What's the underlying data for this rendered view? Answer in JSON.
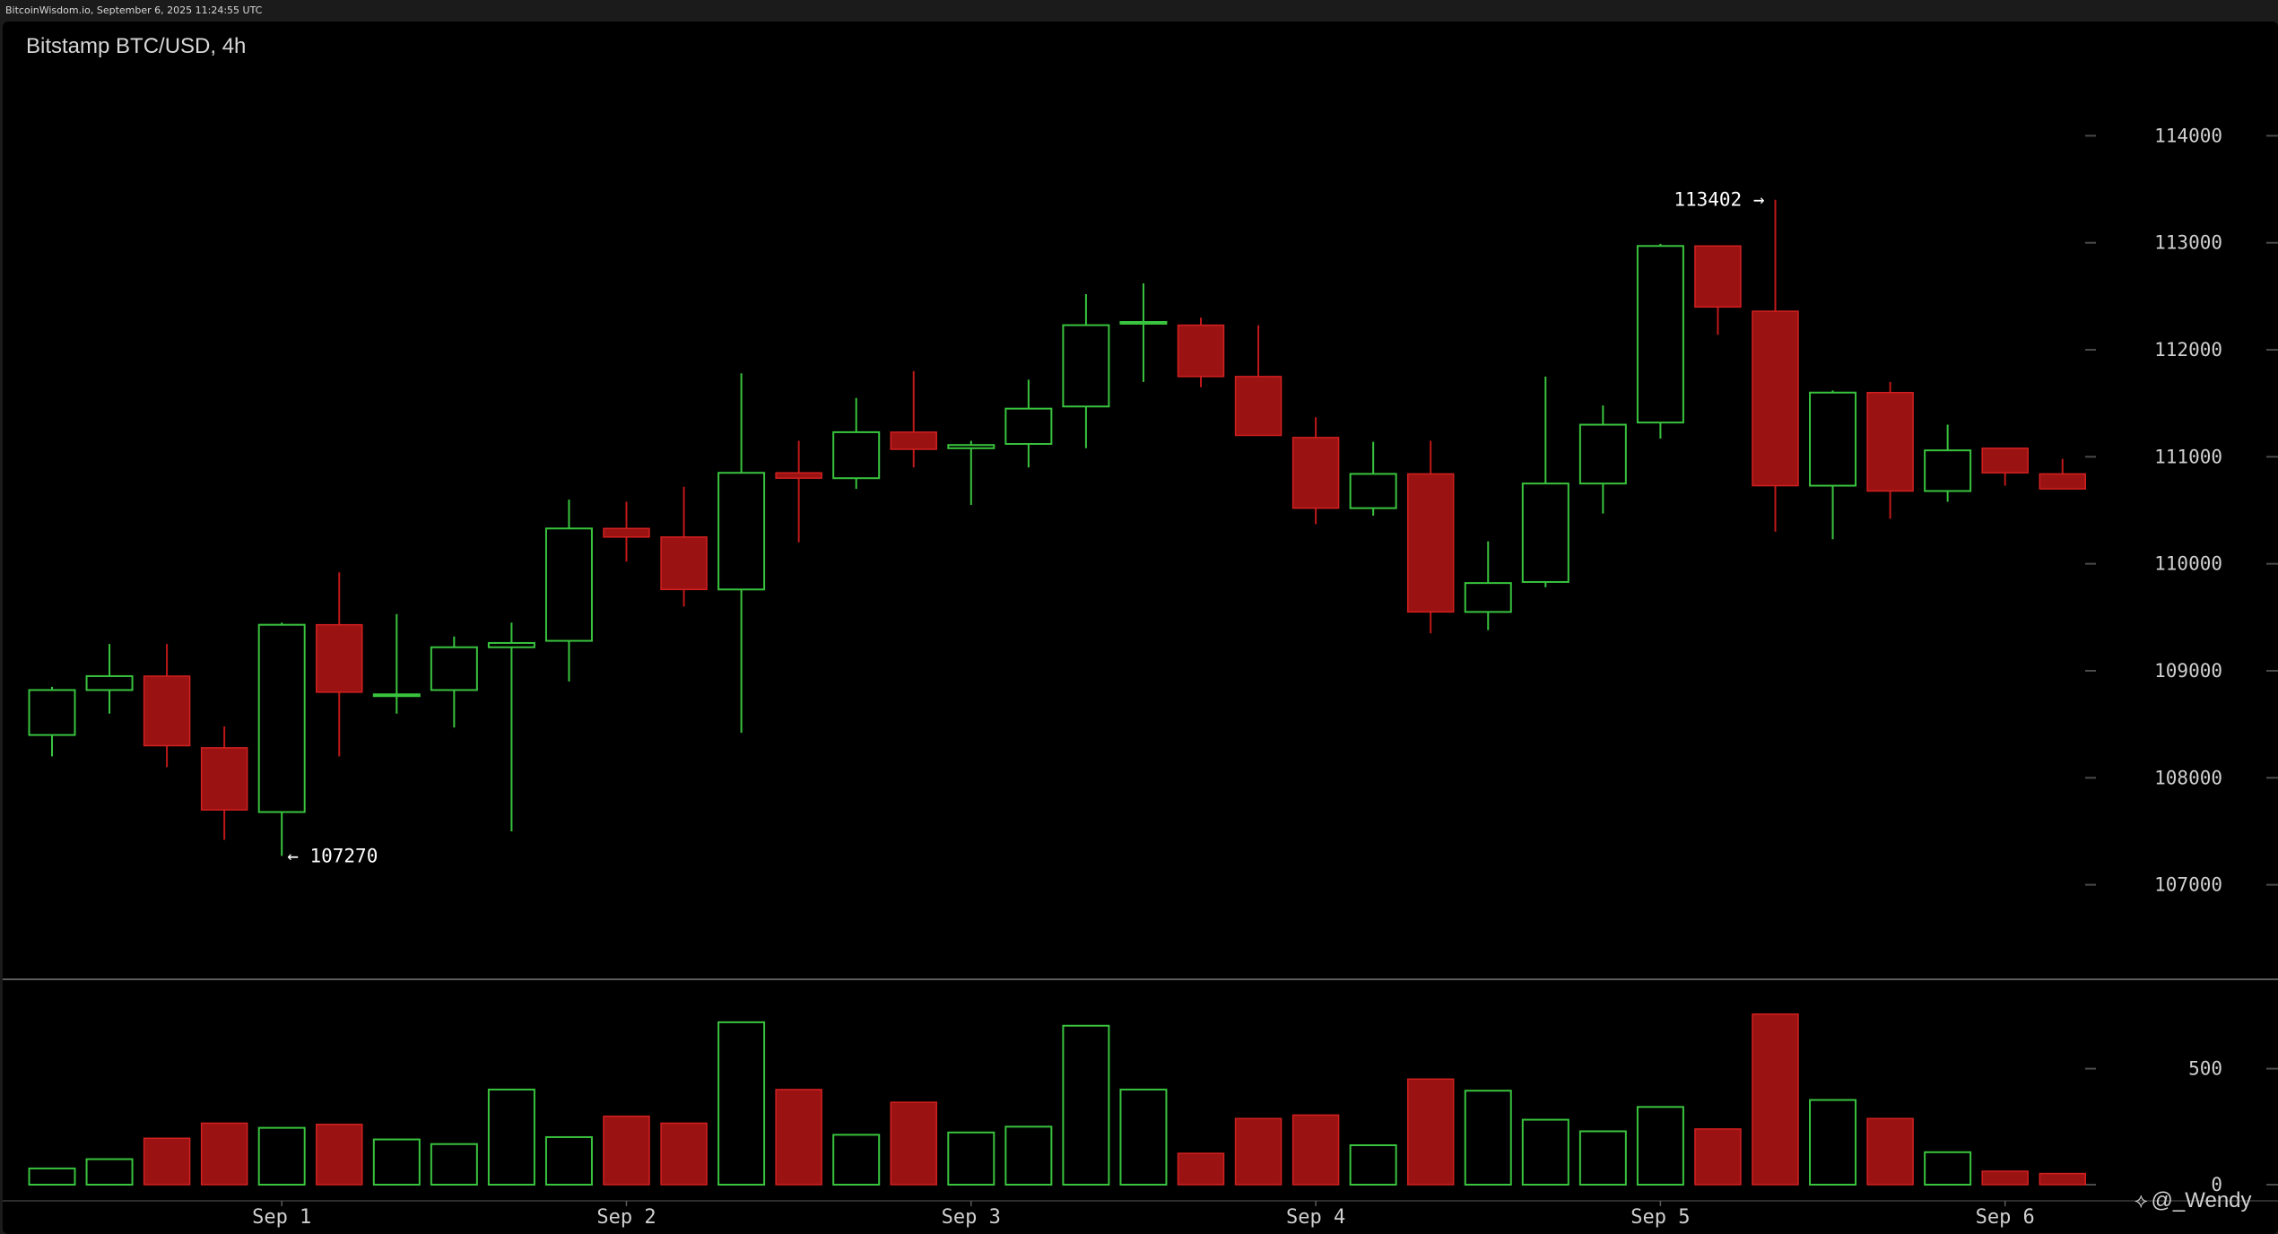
{
  "header": {
    "source_line": "BitcoinWisdom.io, September 6, 2025 11:24:55 UTC"
  },
  "watermark": {
    "icon": "diamond-logo-icon",
    "text": "@_Wendy"
  },
  "colors": {
    "up": "#39c33e",
    "down": "#9b1212",
    "down_border": "#d22020",
    "wick_up": "#39c33e",
    "wick_down": "#c01818",
    "grid_tick": "#4a4a4a",
    "separator": "#7a7a7a"
  },
  "chart_data": {
    "type": "candlestick",
    "title": "Bitstamp BTC/USD, 4h",
    "x_labels": [
      "Sep 1",
      "Sep 2",
      "Sep 3",
      "Sep 4",
      "Sep 5",
      "Sep 6"
    ],
    "price_axis": {
      "ticks": [
        107000,
        108000,
        109000,
        110000,
        111000,
        112000,
        113000,
        114000
      ],
      "ylim": [
        106100,
        114900
      ]
    },
    "volume_axis": {
      "ticks": [
        0,
        500
      ],
      "ylim": [
        0,
        800
      ]
    },
    "annotations": [
      {
        "text": "← 107270",
        "value": 107270,
        "candle": 4,
        "side": "right"
      },
      {
        "text": "113402 →",
        "value": 113402,
        "candle": 30,
        "side": "left"
      }
    ],
    "candles": [
      {
        "o": 108400,
        "h": 108850,
        "l": 108200,
        "c": 108820,
        "v": 70
      },
      {
        "o": 108820,
        "h": 109250,
        "l": 108600,
        "c": 108950,
        "v": 110
      },
      {
        "o": 108950,
        "h": 109250,
        "l": 108100,
        "c": 108300,
        "v": 200
      },
      {
        "o": 108280,
        "h": 108480,
        "l": 107420,
        "c": 107700,
        "v": 265
      },
      {
        "o": 107680,
        "h": 109450,
        "l": 107270,
        "c": 109430,
        "v": 245
      },
      {
        "o": 109430,
        "h": 109920,
        "l": 108200,
        "c": 108800,
        "v": 260
      },
      {
        "o": 108770,
        "h": 109530,
        "l": 108600,
        "c": 108780,
        "v": 195
      },
      {
        "o": 108820,
        "h": 109320,
        "l": 108470,
        "c": 109220,
        "v": 175
      },
      {
        "o": 109220,
        "h": 109450,
        "l": 107500,
        "c": 109260,
        "v": 410
      },
      {
        "o": 109280,
        "h": 110600,
        "l": 108900,
        "c": 110330,
        "v": 205
      },
      {
        "o": 110330,
        "h": 110580,
        "l": 110020,
        "c": 110250,
        "v": 295
      },
      {
        "o": 110250,
        "h": 110720,
        "l": 109600,
        "c": 109760,
        "v": 265
      },
      {
        "o": 109760,
        "h": 111780,
        "l": 108420,
        "c": 110850,
        "v": 700
      },
      {
        "o": 110850,
        "h": 111150,
        "l": 110200,
        "c": 110800,
        "v": 410
      },
      {
        "o": 110800,
        "h": 111550,
        "l": 110700,
        "c": 111230,
        "v": 215
      },
      {
        "o": 111230,
        "h": 111800,
        "l": 110900,
        "c": 111070,
        "v": 355
      },
      {
        "o": 111080,
        "h": 111150,
        "l": 110550,
        "c": 111110,
        "v": 225
      },
      {
        "o": 111120,
        "h": 111720,
        "l": 110900,
        "c": 111450,
        "v": 250
      },
      {
        "o": 111470,
        "h": 112520,
        "l": 111080,
        "c": 112230,
        "v": 685
      },
      {
        "o": 112250,
        "h": 112620,
        "l": 111700,
        "c": 112260,
        "v": 410
      },
      {
        "o": 112230,
        "h": 112300,
        "l": 111650,
        "c": 111750,
        "v": 135
      },
      {
        "o": 111750,
        "h": 112230,
        "l": 111200,
        "c": 111200,
        "v": 285
      },
      {
        "o": 111180,
        "h": 111370,
        "l": 110370,
        "c": 110520,
        "v": 300
      },
      {
        "o": 110520,
        "h": 111140,
        "l": 110450,
        "c": 110840,
        "v": 170
      },
      {
        "o": 110840,
        "h": 111150,
        "l": 109350,
        "c": 109550,
        "v": 455
      },
      {
        "o": 109550,
        "h": 110210,
        "l": 109380,
        "c": 109820,
        "v": 405
      },
      {
        "o": 109830,
        "h": 111750,
        "l": 109780,
        "c": 110750,
        "v": 280
      },
      {
        "o": 110750,
        "h": 111480,
        "l": 110470,
        "c": 111300,
        "v": 230
      },
      {
        "o": 111320,
        "h": 112990,
        "l": 111170,
        "c": 112970,
        "v": 335
      },
      {
        "o": 112970,
        "h": 112970,
        "l": 112140,
        "c": 112400,
        "v": 240
      },
      {
        "o": 112360,
        "h": 113402,
        "l": 110300,
        "c": 110730,
        "v": 735
      },
      {
        "o": 110730,
        "h": 111620,
        "l": 110230,
        "c": 111600,
        "v": 365
      },
      {
        "o": 111600,
        "h": 111700,
        "l": 110420,
        "c": 110680,
        "v": 285
      },
      {
        "o": 110680,
        "h": 111300,
        "l": 110580,
        "c": 111060,
        "v": 140
      },
      {
        "o": 111080,
        "h": 111080,
        "l": 110730,
        "c": 110850,
        "v": 58
      },
      {
        "o": 110840,
        "h": 110980,
        "l": 110700,
        "c": 110700,
        "v": 48
      }
    ]
  }
}
